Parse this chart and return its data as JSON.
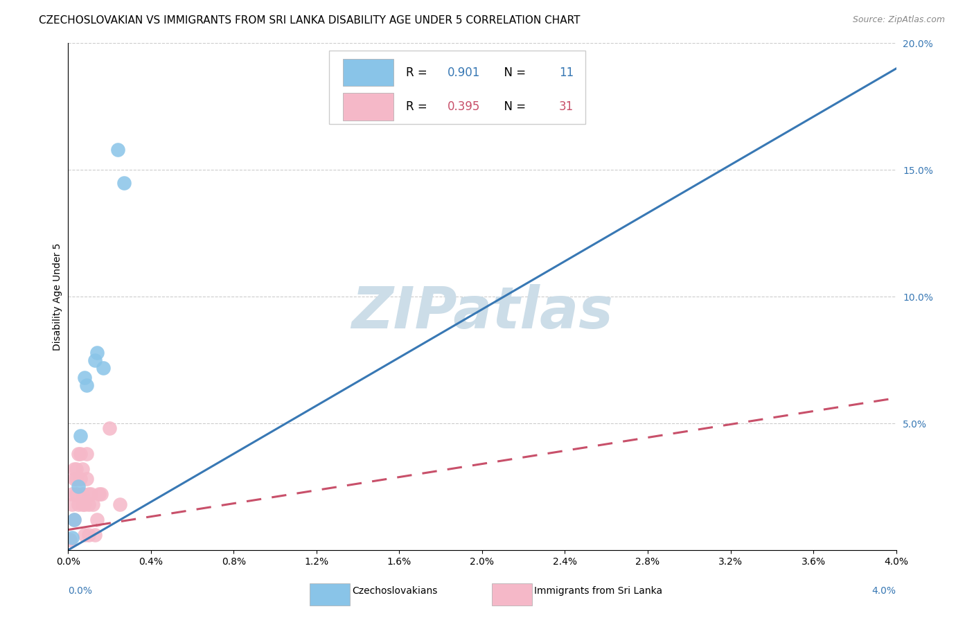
{
  "title": "CZECHOSLOVAKIAN VS IMMIGRANTS FROM SRI LANKA DISABILITY AGE UNDER 5 CORRELATION CHART",
  "source": "Source: ZipAtlas.com",
  "ylabel": "Disability Age Under 5",
  "blue_R": 0.901,
  "blue_N": 11,
  "pink_R": 0.395,
  "pink_N": 31,
  "blue_scatter_x": [
    0.0002,
    0.0003,
    0.0005,
    0.0006,
    0.0008,
    0.0009,
    0.0013,
    0.0014,
    0.0017,
    0.0024,
    0.0027
  ],
  "blue_scatter_y": [
    0.5,
    1.2,
    2.5,
    4.5,
    6.8,
    6.5,
    7.5,
    7.8,
    7.2,
    15.8,
    14.5
  ],
  "pink_scatter_x": [
    0.0001,
    0.0002,
    0.0002,
    0.0003,
    0.0003,
    0.0003,
    0.0004,
    0.0004,
    0.0004,
    0.0005,
    0.0005,
    0.0006,
    0.0006,
    0.0007,
    0.0007,
    0.0007,
    0.0008,
    0.0008,
    0.0009,
    0.0009,
    0.001,
    0.001,
    0.001,
    0.0011,
    0.0012,
    0.0013,
    0.0014,
    0.0015,
    0.0016,
    0.002,
    0.0025
  ],
  "pink_scatter_y": [
    0.4,
    1.8,
    2.2,
    2.8,
    3.2,
    1.2,
    2.8,
    2.2,
    3.2,
    3.8,
    1.8,
    3.8,
    2.8,
    3.2,
    2.2,
    1.8,
    0.6,
    1.8,
    3.8,
    2.8,
    2.2,
    1.8,
    0.6,
    2.2,
    1.8,
    0.6,
    1.2,
    2.2,
    2.2,
    4.8,
    1.8
  ],
  "blue_line_color": "#3878b4",
  "pink_line_color": "#c8506a",
  "blue_scatter_color": "#89c4e8",
  "pink_scatter_color": "#f5b8c8",
  "watermark": "ZIPatlas",
  "watermark_color": "#ccdde8",
  "background_color": "#ffffff",
  "xlim": [
    0.0,
    0.04
  ],
  "ylim_left": [
    0.0,
    20.0
  ],
  "right_ytick_values": [
    5.0,
    10.0,
    15.0,
    20.0
  ],
  "right_ytick_labels": [
    "5.0%",
    "10.0%",
    "15.0%",
    "20.0%"
  ],
  "x_tick_count": 11,
  "title_fontsize": 11,
  "axis_fontsize": 10,
  "legend_fontsize": 12,
  "source_text": "Source: ZipAtlas.com"
}
